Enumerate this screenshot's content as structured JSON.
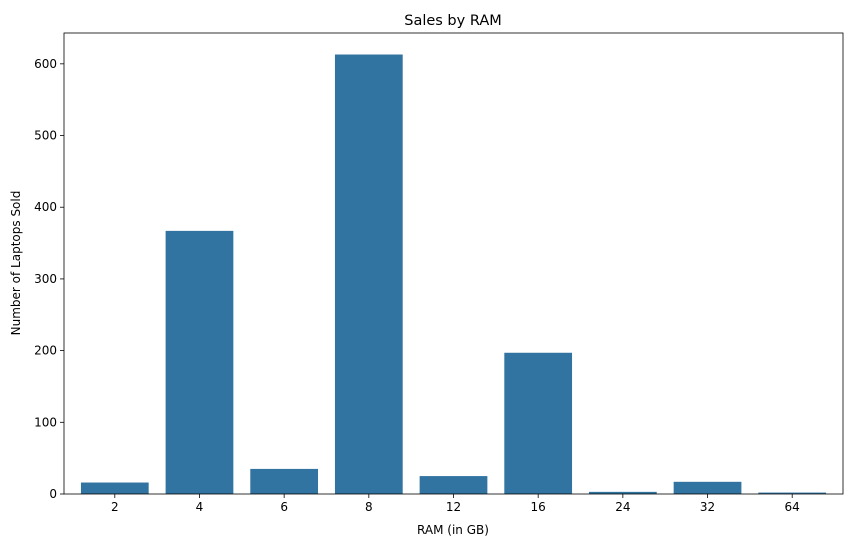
{
  "chart_data": {
    "type": "bar",
    "title": "Sales by RAM",
    "xlabel": "RAM (in GB)",
    "ylabel": "Number of Laptops Sold",
    "categories": [
      "2",
      "4",
      "6",
      "8",
      "12",
      "16",
      "24",
      "32",
      "64"
    ],
    "values": [
      16,
      367,
      35,
      613,
      25,
      197,
      3,
      17,
      2
    ],
    "ylim": [
      0,
      643
    ],
    "yticks": [
      0,
      100,
      200,
      300,
      400,
      500,
      600
    ],
    "grid": false,
    "bar_color": "#3274a1"
  }
}
